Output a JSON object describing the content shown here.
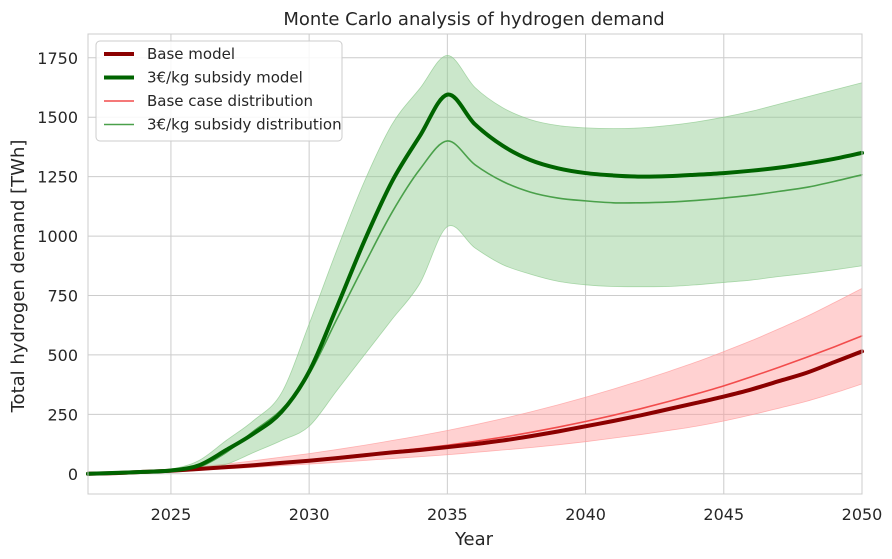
{
  "chart_data": {
    "type": "line",
    "title": "Monte Carlo analysis of hydrogen demand",
    "xlabel": "Year",
    "ylabel": "Total hydrogen demand [TWh]",
    "xlim": [
      2022,
      2050
    ],
    "ylim": [
      -85,
      1850
    ],
    "xticks": [
      2025,
      2030,
      2035,
      2040,
      2045,
      2050
    ],
    "yticks": [
      0,
      250,
      500,
      750,
      1000,
      1250,
      1500,
      1750
    ],
    "grid": true,
    "legend_position": "top-left",
    "x": [
      2022,
      2023,
      2024,
      2025,
      2026,
      2027,
      2028,
      2029,
      2030,
      2031,
      2032,
      2033,
      2034,
      2035,
      2036,
      2037,
      2038,
      2039,
      2040,
      2041,
      2042,
      2043,
      2044,
      2045,
      2046,
      2047,
      2048,
      2049,
      2050
    ],
    "series": [
      {
        "name": "Base model",
        "color": "#8b0000",
        "values": [
          0,
          3,
          8,
          13,
          20,
          28,
          36,
          46,
          55,
          66,
          78,
          90,
          100,
          112,
          125,
          140,
          158,
          178,
          200,
          222,
          246,
          272,
          298,
          325,
          355,
          390,
          425,
          470,
          515
        ]
      },
      {
        "name": "3€/kg subsidy model",
        "color": "#006400",
        "values": [
          0,
          4,
          8,
          14,
          35,
          100,
          170,
          260,
          430,
          700,
          980,
          1230,
          1420,
          1595,
          1470,
          1380,
          1320,
          1285,
          1265,
          1255,
          1250,
          1252,
          1258,
          1265,
          1275,
          1288,
          1305,
          1325,
          1350
        ]
      },
      {
        "name": "Base case distribution",
        "color": "#f24c4c",
        "values": [
          0,
          3,
          7,
          13,
          20,
          28,
          38,
          48,
          59,
          70,
          82,
          94,
          106,
          120,
          136,
          154,
          174,
          196,
          220,
          246,
          274,
          304,
          336,
          370,
          408,
          448,
          490,
          534,
          580
        ]
      },
      {
        "name": "3€/kg subsidy distribution",
        "color": "#4aa04a",
        "values": [
          0,
          4,
          8,
          14,
          28,
          90,
          180,
          270,
          420,
          650,
          880,
          1100,
          1280,
          1400,
          1300,
          1230,
          1185,
          1160,
          1148,
          1140,
          1140,
          1143,
          1150,
          1160,
          1172,
          1188,
          1205,
          1230,
          1258
        ]
      }
    ],
    "bands": [
      {
        "of": "Base case distribution",
        "color": "#ff9a9a",
        "lower": [
          0,
          2,
          5,
          10,
          15,
          21,
          27,
          34,
          41,
          48,
          56,
          64,
          72,
          80,
          90,
          100,
          110,
          122,
          135,
          150,
          165,
          182,
          200,
          222,
          248,
          276,
          305,
          340,
          378
        ],
        "upper": [
          0,
          5,
          11,
          19,
          29,
          41,
          55,
          70,
          85,
          102,
          120,
          140,
          160,
          182,
          206,
          232,
          260,
          290,
          322,
          356,
          392,
          430,
          470,
          514,
          560,
          610,
          662,
          720,
          780
        ]
      },
      {
        "of": "3€/kg subsidy distribution",
        "color": "#8cc98c",
        "lower": [
          0,
          2,
          5,
          8,
          15,
          40,
          90,
          140,
          200,
          350,
          500,
          650,
          800,
          1040,
          950,
          880,
          840,
          810,
          795,
          788,
          787,
          788,
          795,
          805,
          815,
          830,
          843,
          858,
          875
        ],
        "upper": [
          0,
          6,
          12,
          20,
          55,
          140,
          225,
          340,
          630,
          940,
          1230,
          1470,
          1620,
          1760,
          1625,
          1540,
          1490,
          1465,
          1455,
          1452,
          1455,
          1465,
          1480,
          1500,
          1525,
          1555,
          1585,
          1615,
          1645
        ]
      }
    ]
  }
}
